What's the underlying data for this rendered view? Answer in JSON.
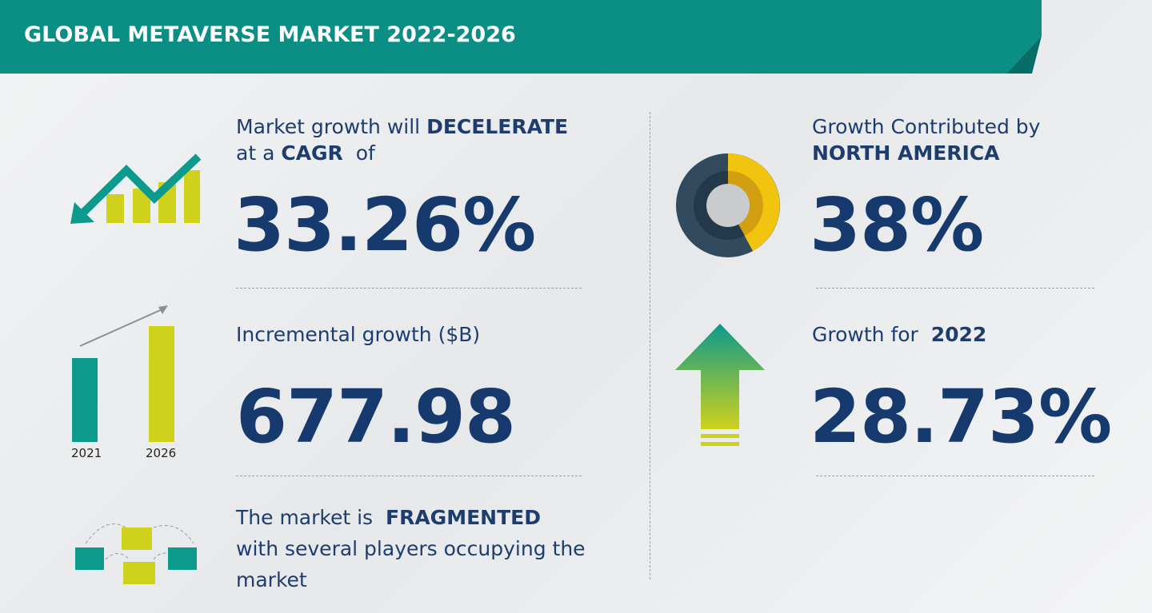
{
  "header": {
    "title": "GLOBAL METAVERSE MARKET 2022-2026"
  },
  "cagr": {
    "lead": "Market growth will",
    "trend": "DECELERATE",
    "prefix": "at a",
    "metric": "CAGR",
    "suffix": "of",
    "value": "33.26%"
  },
  "incremental": {
    "label": "Incremental growth ($B)",
    "value": "677.98",
    "years": [
      "2021",
      "2026"
    ]
  },
  "fragmented": {
    "lead": "The market is",
    "status": "FRAGMENTED",
    "detail": "with several players occupying the market"
  },
  "region": {
    "label": "Growth Contributed by",
    "region": "NORTH AMERICA",
    "value": "38%"
  },
  "yoy": {
    "label": "Growth for",
    "year": "2022",
    "value": "28.73%"
  }
}
